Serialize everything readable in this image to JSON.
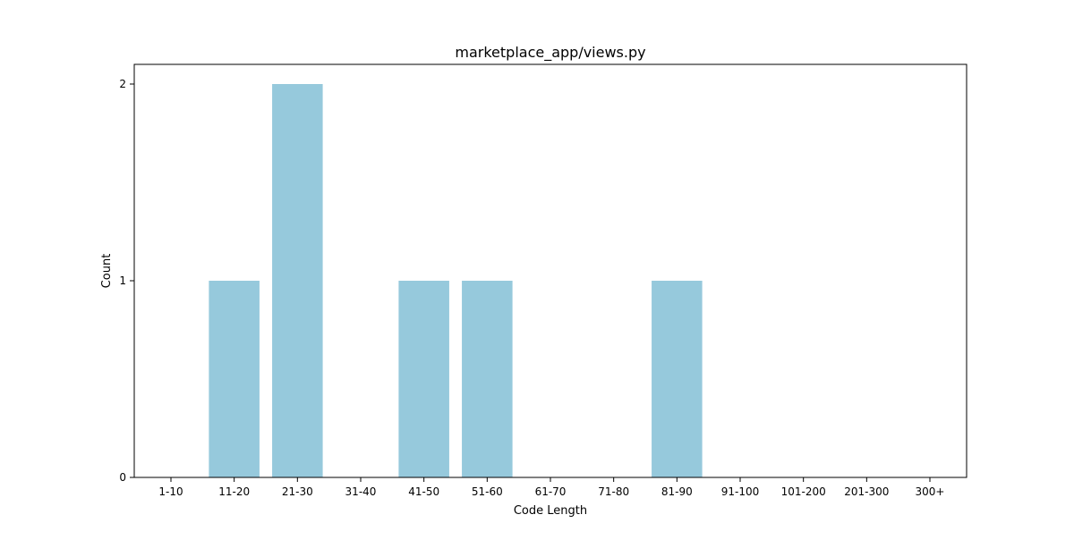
{
  "chart_data": {
    "type": "bar",
    "title": "marketplace_app/views.py",
    "xlabel": "Code Length",
    "ylabel": "Count",
    "categories": [
      "1-10",
      "11-20",
      "21-30",
      "31-40",
      "41-50",
      "51-60",
      "61-70",
      "71-80",
      "81-90",
      "91-100",
      "101-200",
      "201-300",
      "300+"
    ],
    "values": [
      0,
      1,
      2,
      0,
      1,
      1,
      0,
      0,
      1,
      0,
      0,
      0,
      0
    ],
    "yticks": [
      "0",
      "1",
      "2"
    ],
    "ylim": [
      0,
      2.1
    ],
    "grid": false,
    "legend": null,
    "bar_color": "#96c9dc"
  }
}
